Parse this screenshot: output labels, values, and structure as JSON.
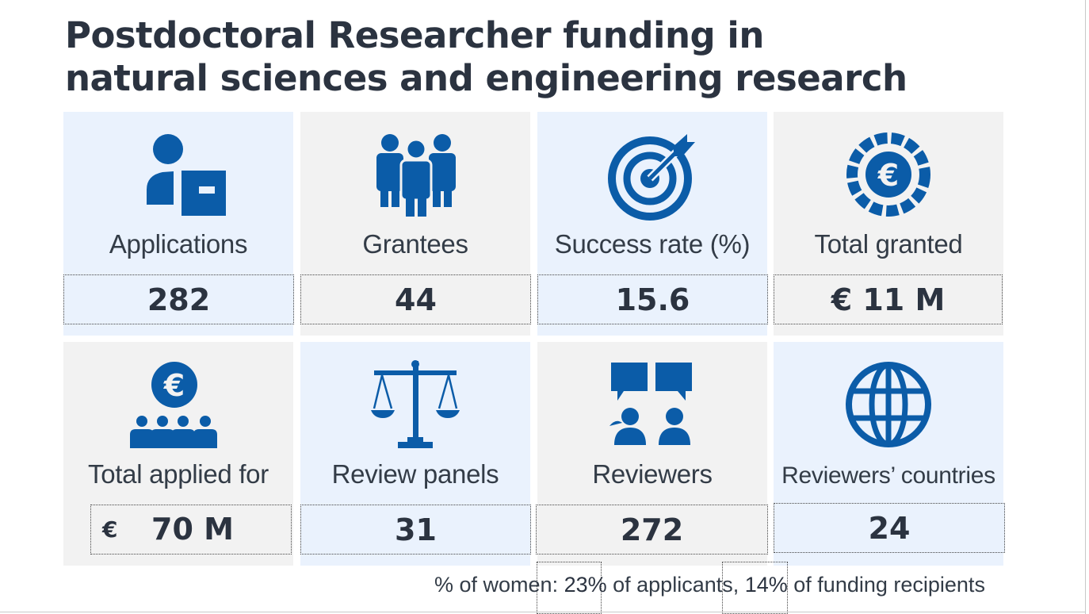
{
  "title": {
    "line1": "Postdoctoral Researcher funding in",
    "line2": "natural sciences and engineering research"
  },
  "stats": [
    {
      "label": "Applications",
      "value": "282",
      "icon": "applicant-icon",
      "bg": "blue"
    },
    {
      "label": "Grantees",
      "value": "44",
      "icon": "people-group-icon",
      "bg": "grey"
    },
    {
      "label": "Success rate (%)",
      "value": "15.6",
      "icon": "target-icon",
      "bg": "blue"
    },
    {
      "label": "Total granted",
      "value": "€ 11 M",
      "icon": "euro-coin-icon",
      "bg": "grey"
    },
    {
      "label": "Total applied for",
      "currency": "€",
      "value": "70 M",
      "icon": "euro-people-icon",
      "bg": "grey"
    },
    {
      "label": "Review panels",
      "value": "31",
      "icon": "scales-icon",
      "bg": "blue"
    },
    {
      "label": "Reviewers",
      "value": "272",
      "icon": "reviewers-chat-icon",
      "bg": "grey"
    },
    {
      "label": "Reviewers’ countries",
      "value": "24",
      "icon": "globe-icon",
      "bg": "blue"
    }
  ],
  "footnote": {
    "prefix": "% of women: ",
    "applicants_pct": "23%",
    "middle": " of applicants, ",
    "recipients_pct": "14%",
    "suffix": " of funding recipients"
  },
  "colors": {
    "icon": "#0b5ca8",
    "title": "#2b3340",
    "tile_blue": "#eaf2fd",
    "tile_grey": "#f2f2f2"
  }
}
